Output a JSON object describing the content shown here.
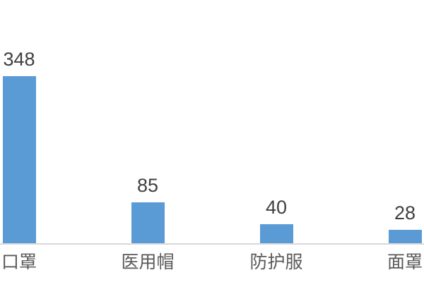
{
  "chart_data": {
    "type": "bar",
    "title": "",
    "xlabel": "",
    "ylabel": "",
    "categories": [
      "口罩",
      "医用帽",
      "防护服",
      "面罩"
    ],
    "values": [
      348,
      85,
      40,
      28
    ],
    "ylim": [
      0,
      360
    ],
    "grid": false,
    "legend": false,
    "data_labels_shown": true,
    "bar_color": "#5B9BD5",
    "axis_line_color": "#D9D9D9",
    "value_label_color": "#404040",
    "category_label_color": "#595959",
    "background_color": "#FFFFFF"
  }
}
